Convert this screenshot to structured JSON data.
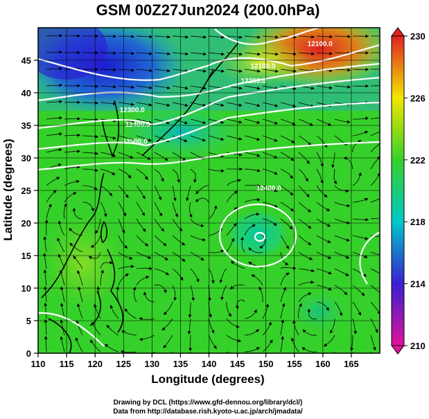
{
  "title": "GSM 00Z27Jun2024 (200.0hPa)",
  "axes": {
    "x_label": "Longitude (degrees)",
    "y_label": "Latitude (degrees)",
    "x_ticks": [
      "110",
      "115",
      "120",
      "125",
      "130",
      "135",
      "140",
      "145",
      "150",
      "155",
      "160",
      "165"
    ],
    "y_ticks": [
      "0",
      "5",
      "10",
      "15",
      "20",
      "25",
      "30",
      "35",
      "40",
      "45"
    ],
    "x_range": [
      110,
      170
    ],
    "y_range": [
      0,
      50
    ]
  },
  "colorbar": {
    "labels": [
      "230",
      "226",
      "222",
      "218",
      "214",
      "210"
    ],
    "range": [
      210,
      230
    ],
    "colors": [
      "#e0139a",
      "#3a1fd0",
      "#00c8c8",
      "#36d02a",
      "#f2e600",
      "#e02222"
    ]
  },
  "contour_labels": [
    {
      "text": "12100.0",
      "lon": 159.5,
      "lat": 47.2
    },
    {
      "text": "12100.0",
      "lon": 149.5,
      "lat": 43.8
    },
    {
      "text": "12200.0",
      "lon": 147.8,
      "lat": 41.5
    },
    {
      "text": "12300.0",
      "lon": 126.5,
      "lat": 37.0
    },
    {
      "text": "12400.0",
      "lon": 127.5,
      "lat": 34.8
    },
    {
      "text": "12500.0",
      "lon": 127.0,
      "lat": 32.2
    },
    {
      "text": "12400.0",
      "lon": 150.5,
      "lat": 25.0
    }
  ],
  "credits": {
    "line1": "Drawing by DCL (https://www.gfd-dennou.org/library/dcl/)",
    "line2": "Data from http://database.rish.kyoto-u.ac.jp/arch/jmadata/"
  }
}
